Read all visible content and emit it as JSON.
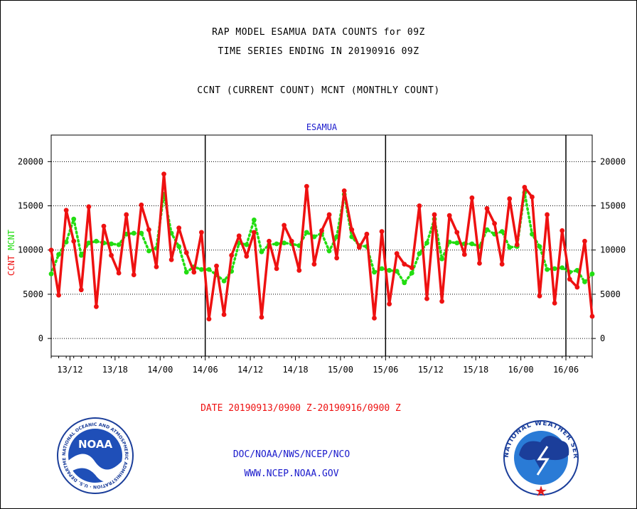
{
  "titles": {
    "line1": "RAP MODEL ESAMUA DATA COUNTS for 09Z",
    "line2": "TIME SERIES ENDING IN 20190916 09Z",
    "line3": "CCNT (CURRENT COUNT) MCNT (MONTHLY COUNT)"
  },
  "colors": {
    "ccnt": "#ee1111",
    "mcnt": "#22dd11",
    "link": "#1a1acc",
    "axis": "#000000"
  },
  "footer": {
    "date_range": "DATE 20190913/0900 Z-20190916/0900 Z",
    "org": "DOC/NOAA/NWS/NCEP/NCO",
    "url": "WWW.NCEP.NOAA.GOV"
  },
  "logos": {
    "noaa_text": "NOAA",
    "noaa_ring": "NATIONAL OCEANIC AND ATMOSPHERIC ADMINISTRATION · U.S. DEPARTMENT OF COMMERCE",
    "nws_ring": "NATIONAL WEATHER SERVICE"
  },
  "chart_data": {
    "type": "line",
    "title": "ESAMUA",
    "ylabel_left": [
      "CCNT",
      "MCNT"
    ],
    "ylim": [
      -2000,
      23000
    ],
    "yticks": [
      0,
      5000,
      10000,
      15000,
      20000
    ],
    "xlim": [
      0,
      72
    ],
    "xticks": [
      {
        "x": 2.5,
        "label": "13/12"
      },
      {
        "x": 8.5,
        "label": "13/18"
      },
      {
        "x": 14.5,
        "label": "14/00"
      },
      {
        "x": 20.5,
        "label": "14/06"
      },
      {
        "x": 26.5,
        "label": "14/12"
      },
      {
        "x": 32.5,
        "label": "14/18"
      },
      {
        "x": 38.5,
        "label": "15/00"
      },
      {
        "x": 44.5,
        "label": "15/06"
      },
      {
        "x": 50.5,
        "label": "15/12"
      },
      {
        "x": 56.5,
        "label": "15/18"
      },
      {
        "x": 62.5,
        "label": "16/00"
      },
      {
        "x": 68.5,
        "label": "16/06"
      }
    ],
    "day_separators": [
      20.5,
      44.5,
      68.5
    ],
    "grid": "horizontal dotted",
    "series": [
      {
        "name": "CCNT",
        "values": [
          10000,
          4900,
          14500,
          11000,
          5500,
          14900,
          3600,
          12700,
          9400,
          7400,
          14000,
          7200,
          15100,
          12300,
          8100,
          18600,
          8900,
          12500,
          9700,
          7500,
          12000,
          2200,
          8200,
          2700,
          9400,
          11600,
          9300,
          12000,
          2400,
          11000,
          7900,
          12800,
          11000,
          7700,
          17200,
          8400,
          12200,
          14000,
          9100,
          16700,
          12300,
          10300,
          11800,
          2300,
          12100,
          3900,
          9600,
          8400,
          8000,
          15000,
          4500,
          14000,
          4200,
          13900,
          12000,
          9500,
          15900,
          8500,
          14700,
          13000,
          8400,
          15800,
          10600,
          17100,
          16000,
          4800,
          14000,
          4000,
          12200,
          6700,
          5800,
          11000,
          2500
        ]
      },
      {
        "name": "MCNT",
        "values": [
          7300,
          9500,
          10900,
          13500,
          9400,
          10800,
          11000,
          10800,
          10700,
          10600,
          11800,
          11900,
          11900,
          9900,
          10200,
          16300,
          11900,
          10400,
          7500,
          8100,
          7800,
          7800,
          7200,
          6500,
          7600,
          10800,
          10600,
          13400,
          9800,
          10600,
          10700,
          10800,
          10700,
          10500,
          12000,
          11500,
          11900,
          9900,
          11500,
          16300,
          11500,
          10500,
          10400,
          7500,
          7900,
          7700,
          7600,
          6300,
          7400,
          9600,
          10800,
          13500,
          9000,
          10900,
          10800,
          10700,
          10700,
          10400,
          12300,
          11800,
          12100,
          10300,
          10400,
          16500,
          11800,
          10400,
          7800,
          7900,
          8000,
          7500,
          7700,
          6400,
          7300
        ]
      }
    ]
  }
}
